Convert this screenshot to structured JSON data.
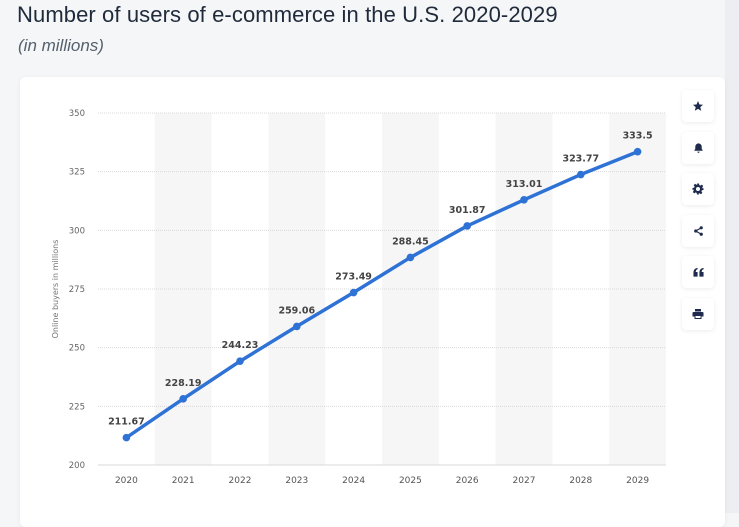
{
  "header": {
    "title": "Number of users of e-commerce in the U.S. 2020-2029",
    "subtitle": "(in millions)"
  },
  "toolbar": {
    "items": [
      {
        "name": "favorite",
        "icon": "star-icon"
      },
      {
        "name": "notification",
        "icon": "bell-icon"
      },
      {
        "name": "settings",
        "icon": "gear-icon"
      },
      {
        "name": "share",
        "icon": "share-icon"
      },
      {
        "name": "cite",
        "icon": "quote-icon"
      },
      {
        "name": "print",
        "icon": "printer-icon"
      }
    ]
  },
  "colors": {
    "line": "#2f72d6",
    "grid": "#d9d9d9",
    "band": "#f6f6f7",
    "icon": "#1f2b4d"
  },
  "chart_data": {
    "type": "line",
    "title": "Number of users of e-commerce in the U.S. 2020-2029",
    "subtitle": "(in millions)",
    "xlabel": "",
    "ylabel": "Online buyers in millions",
    "categories": [
      "2020",
      "2021",
      "2022",
      "2023",
      "2024",
      "2025",
      "2026",
      "2027",
      "2028",
      "2029"
    ],
    "series": [
      {
        "name": "Online buyers",
        "values": [
          211.67,
          228.19,
          244.23,
          259.06,
          273.49,
          288.45,
          301.87,
          313.01,
          323.77,
          333.5
        ]
      }
    ],
    "data_labels": [
      "211.67",
      "228.19",
      "244.23",
      "259.06",
      "273.49",
      "288.45",
      "301.87",
      "313.01",
      "323.77",
      "333.5"
    ],
    "ylim": [
      200,
      350
    ],
    "yticks": [
      200,
      225,
      250,
      275,
      300,
      325,
      350
    ],
    "grid": true,
    "legend": "none"
  }
}
